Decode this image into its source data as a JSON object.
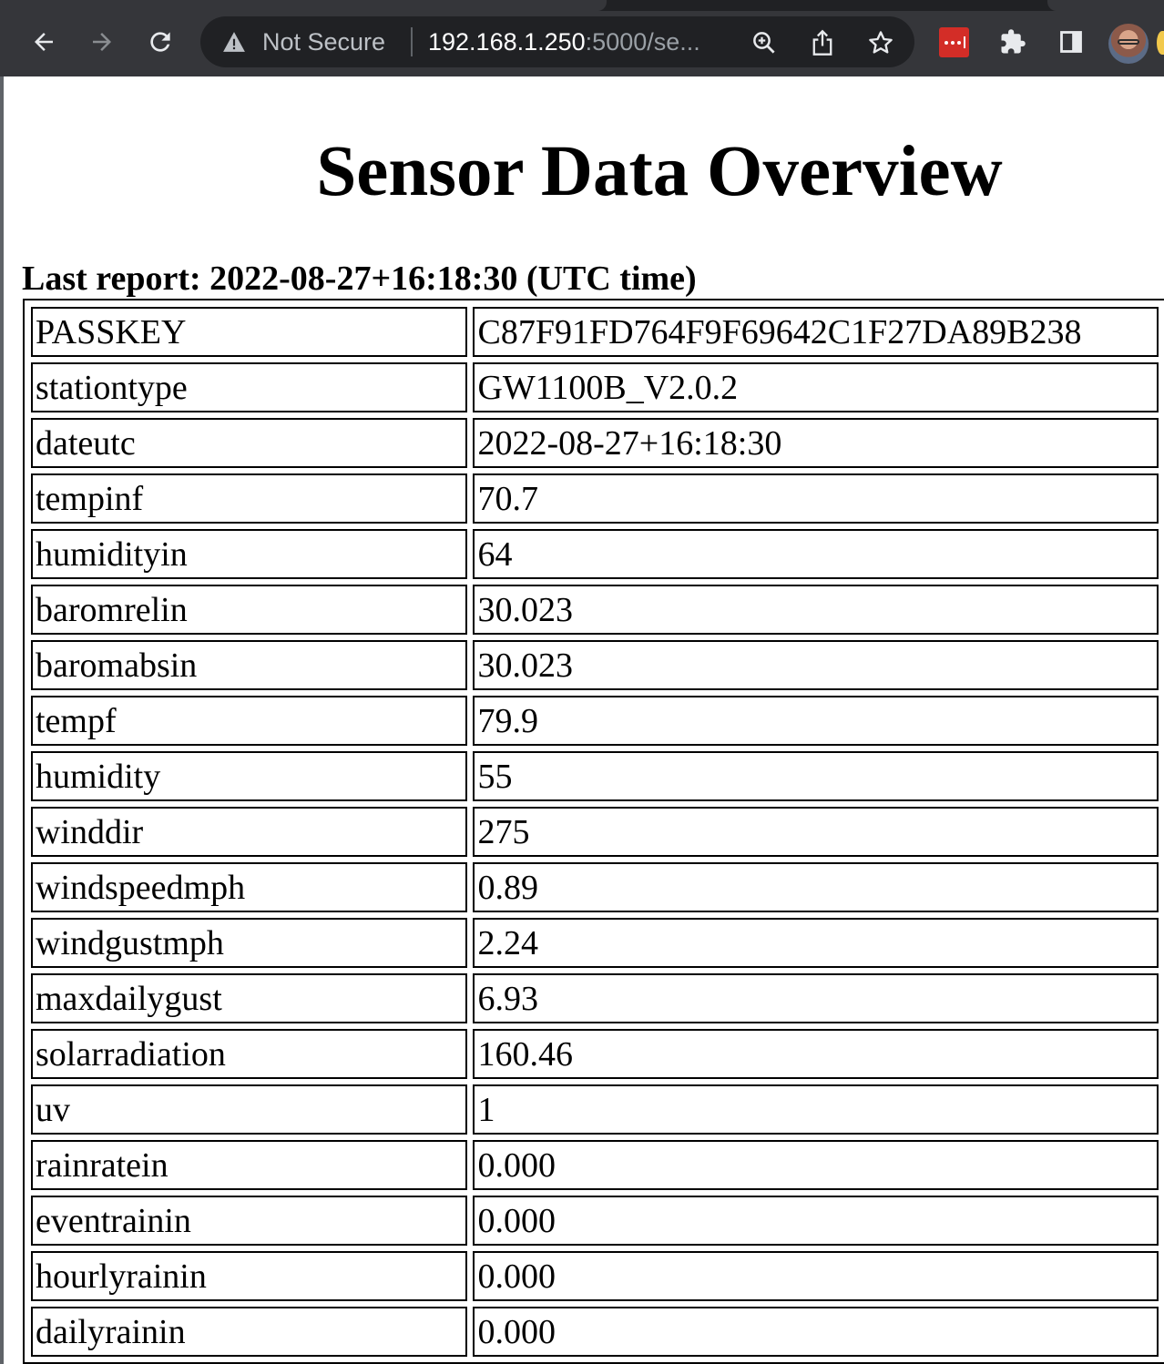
{
  "browser": {
    "security_label": "Not Secure",
    "url_host": "192.168.1.250",
    "url_rest": ":5000/se..."
  },
  "page": {
    "title": "Sensor Data Overview",
    "last_report": "Last report: 2022-08-27+16:18:30 (UTC time)"
  },
  "rows": [
    {
      "key": "PASSKEY",
      "value": "C87F91FD764F9F69642C1F27DA89B238"
    },
    {
      "key": "stationtype",
      "value": "GW1100B_V2.0.2"
    },
    {
      "key": "dateutc",
      "value": "2022-08-27+16:18:30"
    },
    {
      "key": "tempinf",
      "value": "70.7"
    },
    {
      "key": "humidityin",
      "value": "64"
    },
    {
      "key": "baromrelin",
      "value": "30.023"
    },
    {
      "key": "baromabsin",
      "value": "30.023"
    },
    {
      "key": "tempf",
      "value": "79.9"
    },
    {
      "key": "humidity",
      "value": "55"
    },
    {
      "key": "winddir",
      "value": "275"
    },
    {
      "key": "windspeedmph",
      "value": "0.89"
    },
    {
      "key": "windgustmph",
      "value": "2.24"
    },
    {
      "key": "maxdailygust",
      "value": "6.93"
    },
    {
      "key": "solarradiation",
      "value": "160.46"
    },
    {
      "key": "uv",
      "value": "1"
    },
    {
      "key": "rainratein",
      "value": "0.000"
    },
    {
      "key": "eventrainin",
      "value": "0.000"
    },
    {
      "key": "hourlyrainin",
      "value": "0.000"
    },
    {
      "key": "dailyrainin",
      "value": "0.000"
    }
  ]
}
